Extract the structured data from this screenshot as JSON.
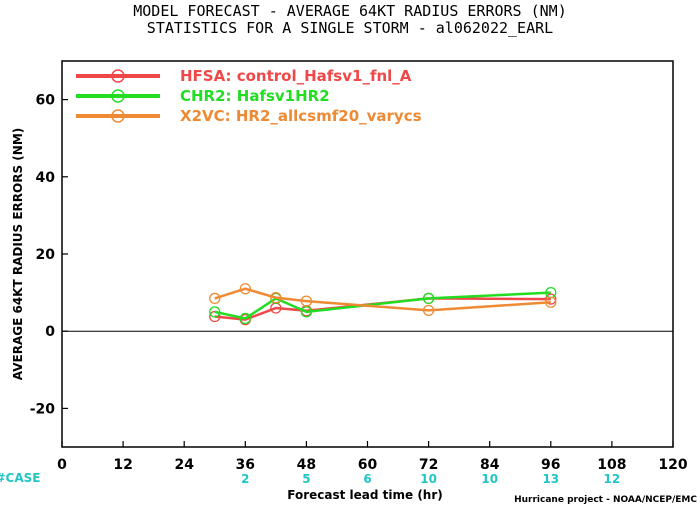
{
  "chart_data": {
    "type": "line",
    "title": "MODEL FORECAST - AVERAGE 64KT RADIUS ERRORS (NM)",
    "subtitle": "STATISTICS FOR A SINGLE STORM - al062022_EARL",
    "xlabel": "Forecast lead time (hr)",
    "ylabel": "AVERAGE 64KT RADIUS ERRORS (NM)",
    "xlim": [
      0,
      120
    ],
    "ylim": [
      -30,
      70
    ],
    "x_ticks": [
      0,
      12,
      24,
      36,
      48,
      60,
      72,
      84,
      96,
      108,
      120
    ],
    "y_ticks": [
      -20,
      0,
      20,
      40,
      60
    ],
    "zero_line": true,
    "legend_position": "top-left",
    "series": [
      {
        "name": "HFSA:  control_Hafsv1_fnl_A",
        "color": "#f04848",
        "x": [
          30,
          36,
          42,
          48,
          72,
          96
        ],
        "y": [
          3.8,
          3.0,
          6.0,
          5.3,
          8.5,
          8.3
        ]
      },
      {
        "name": "CHR2:  Hafsv1HR2",
        "color": "#22dd22",
        "x": [
          30,
          36,
          42,
          48,
          72,
          96
        ],
        "y": [
          5.0,
          3.3,
          8.5,
          5.0,
          8.5,
          10.0
        ]
      },
      {
        "name": "X2VC:  HR2_allcsmf20_varycs",
        "color": "#ee8a33",
        "x": [
          30,
          36,
          42,
          48,
          72,
          96
        ],
        "y": [
          8.5,
          11.0,
          8.7,
          7.8,
          5.4,
          7.5
        ]
      }
    ],
    "cases": {
      "label": "#CASE",
      "color": "#22c5c5",
      "x": [
        36,
        48,
        60,
        72,
        84,
        96,
        108
      ],
      "values": [
        "2",
        "5",
        "6",
        "10",
        "10",
        "13",
        "12"
      ]
    }
  },
  "credit": "Hurricane project - NOAA/NCEP/EMC"
}
